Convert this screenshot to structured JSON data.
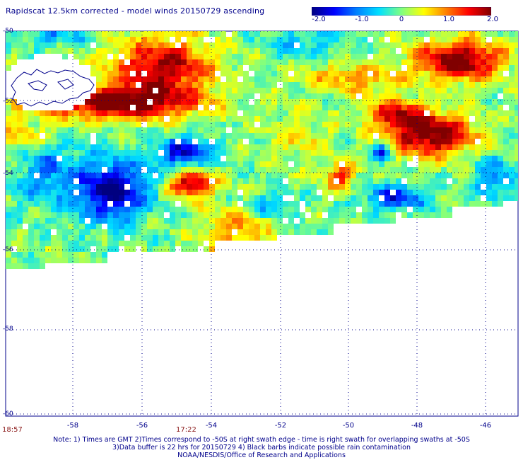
{
  "title": "Rapidscat 12.5km corrected - model winds 20150729 ascending",
  "colorbar": {
    "labels": [
      "-2.0",
      "-1.0",
      "0",
      "1.0",
      "2.0"
    ],
    "min": -2.0,
    "max": 2.0,
    "colors": [
      "#000080",
      "#0000ff",
      "#0080ff",
      "#00e0ff",
      "#80ff80",
      "#ffff00",
      "#ff8000",
      "#ff0000",
      "#800000"
    ]
  },
  "map": {
    "lat_labels": [
      "-50",
      "-52",
      "-54",
      "-56",
      "-58",
      "-60"
    ],
    "lon_labels": [
      "-58",
      "-56",
      "-54",
      "-52",
      "-50",
      "-48",
      "-46"
    ],
    "time_labels": [
      "18:57",
      "17:22"
    ],
    "grid_style": "dotted",
    "coastline_color": "#00008b",
    "missing_color": "#ffffff"
  },
  "notes": [
    "Note: 1) Times are GMT 2)Times correspond to -50S at right swath edge - time is right swath for overlapping swaths at -50S",
    "3)Data buffer is 22 hrs for 20150729 4) Black barbs indicate possible rain contamination",
    "NOAA/NESDIS/Office of Research and Applications"
  ]
}
